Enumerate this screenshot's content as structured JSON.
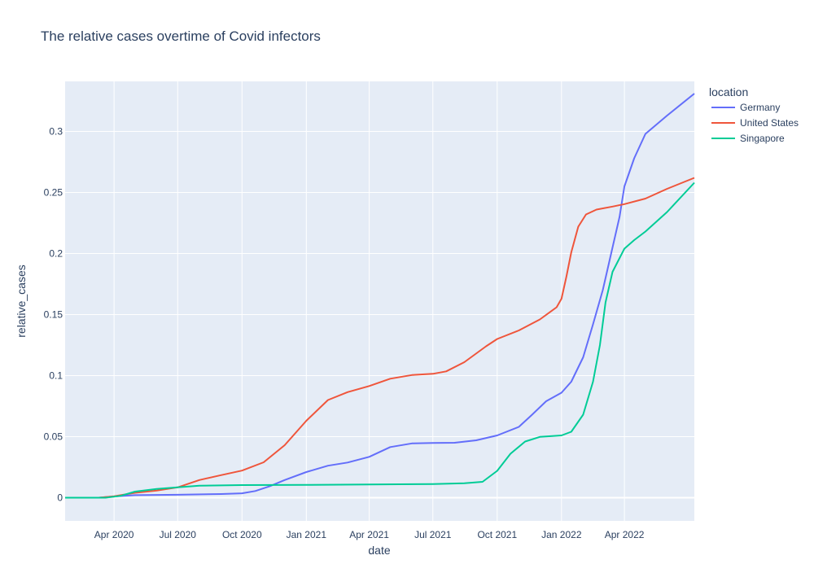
{
  "chart_data": {
    "type": "line",
    "title": "The relative cases overtime of Covid infectors",
    "xlabel": "date",
    "ylabel": "relative_cases",
    "x_range": [
      "2020-01-22",
      "2022-07-10"
    ],
    "ylim": [
      -0.019,
      0.341
    ],
    "y_ticks": [
      0,
      0.05,
      0.1,
      0.15,
      0.2,
      0.25,
      0.3
    ],
    "y_tick_labels": [
      "0",
      "0.05",
      "0.1",
      "0.15",
      "0.2",
      "0.25",
      "0.3"
    ],
    "x_ticks": [
      "2020-04-01",
      "2020-07-01",
      "2020-10-01",
      "2021-01-01",
      "2021-04-01",
      "2021-07-01",
      "2021-10-01",
      "2022-01-01",
      "2022-04-01"
    ],
    "x_tick_labels": [
      "Apr 2020",
      "Jul 2020",
      "Oct 2020",
      "Jan 2021",
      "Apr 2021",
      "Jul 2021",
      "Oct 2021",
      "Jan 2022",
      "Apr 2022"
    ],
    "grid": true,
    "plot_background": "#e5ecf6",
    "legend": {
      "title": "location",
      "placement": "top-right, outside plot"
    },
    "series": [
      {
        "name": "Germany",
        "color": "#636efa",
        "points": [
          [
            "2020-01-22",
            0
          ],
          [
            "2020-03-10",
            0
          ],
          [
            "2020-04-01",
            0.001
          ],
          [
            "2020-05-01",
            0.0021
          ],
          [
            "2020-07-01",
            0.0024
          ],
          [
            "2020-09-01",
            0.003
          ],
          [
            "2020-10-01",
            0.0036
          ],
          [
            "2020-10-20",
            0.0055
          ],
          [
            "2020-11-10",
            0.0095
          ],
          [
            "2020-12-01",
            0.0145
          ],
          [
            "2021-01-01",
            0.021
          ],
          [
            "2021-02-01",
            0.0262
          ],
          [
            "2021-03-01",
            0.0288
          ],
          [
            "2021-04-01",
            0.0335
          ],
          [
            "2021-05-01",
            0.0415
          ],
          [
            "2021-06-01",
            0.0445
          ],
          [
            "2021-07-01",
            0.0448
          ],
          [
            "2021-08-01",
            0.045
          ],
          [
            "2021-09-01",
            0.047
          ],
          [
            "2021-10-01",
            0.051
          ],
          [
            "2021-11-01",
            0.058
          ],
          [
            "2021-11-20",
            0.068
          ],
          [
            "2021-12-10",
            0.079
          ],
          [
            "2022-01-01",
            0.086
          ],
          [
            "2022-01-15",
            0.095
          ],
          [
            "2022-02-01",
            0.115
          ],
          [
            "2022-02-15",
            0.142
          ],
          [
            "2022-03-01",
            0.17
          ],
          [
            "2022-03-15",
            0.205
          ],
          [
            "2022-03-25",
            0.23
          ],
          [
            "2022-04-01",
            0.255
          ],
          [
            "2022-04-15",
            0.278
          ],
          [
            "2022-05-01",
            0.298
          ],
          [
            "2022-06-01",
            0.313
          ],
          [
            "2022-07-10",
            0.331
          ]
        ]
      },
      {
        "name": "United States",
        "color": "#ef553b",
        "points": [
          [
            "2020-01-22",
            0
          ],
          [
            "2020-03-10",
            0
          ],
          [
            "2020-04-01",
            0.0012
          ],
          [
            "2020-05-01",
            0.004
          ],
          [
            "2020-06-01",
            0.0058
          ],
          [
            "2020-07-01",
            0.0085
          ],
          [
            "2020-08-01",
            0.0145
          ],
          [
            "2020-09-01",
            0.0185
          ],
          [
            "2020-10-01",
            0.0222
          ],
          [
            "2020-11-01",
            0.029
          ],
          [
            "2020-12-01",
            0.043
          ],
          [
            "2021-01-01",
            0.063
          ],
          [
            "2021-02-01",
            0.08
          ],
          [
            "2021-03-01",
            0.0865
          ],
          [
            "2021-04-01",
            0.0915
          ],
          [
            "2021-05-01",
            0.0975
          ],
          [
            "2021-06-01",
            0.1005
          ],
          [
            "2021-07-01",
            0.1015
          ],
          [
            "2021-07-20",
            0.1035
          ],
          [
            "2021-08-15",
            0.111
          ],
          [
            "2021-09-15",
            0.124
          ],
          [
            "2021-10-01",
            0.13
          ],
          [
            "2021-11-01",
            0.137
          ],
          [
            "2021-12-01",
            0.146
          ],
          [
            "2021-12-25",
            0.156
          ],
          [
            "2022-01-01",
            0.163
          ],
          [
            "2022-01-08",
            0.181
          ],
          [
            "2022-01-15",
            0.201
          ],
          [
            "2022-01-25",
            0.222
          ],
          [
            "2022-02-05",
            0.232
          ],
          [
            "2022-02-20",
            0.236
          ],
          [
            "2022-03-15",
            0.2385
          ],
          [
            "2022-04-01",
            0.2405
          ],
          [
            "2022-05-01",
            0.245
          ],
          [
            "2022-06-01",
            0.253
          ],
          [
            "2022-07-10",
            0.262
          ]
        ]
      },
      {
        "name": "Singapore",
        "color": "#00cc96",
        "points": [
          [
            "2020-01-22",
            0
          ],
          [
            "2020-03-20",
            0
          ],
          [
            "2020-04-10",
            0.0015
          ],
          [
            "2020-05-01",
            0.005
          ],
          [
            "2020-06-01",
            0.0072
          ],
          [
            "2020-07-01",
            0.0085
          ],
          [
            "2020-08-01",
            0.0098
          ],
          [
            "2020-10-01",
            0.0103
          ],
          [
            "2021-01-01",
            0.0105
          ],
          [
            "2021-04-01",
            0.0108
          ],
          [
            "2021-07-01",
            0.0112
          ],
          [
            "2021-08-15",
            0.0118
          ],
          [
            "2021-09-10",
            0.013
          ],
          [
            "2021-10-01",
            0.022
          ],
          [
            "2021-10-20",
            0.036
          ],
          [
            "2021-11-10",
            0.046
          ],
          [
            "2021-12-01",
            0.0498
          ],
          [
            "2022-01-01",
            0.051
          ],
          [
            "2022-01-15",
            0.054
          ],
          [
            "2022-02-01",
            0.068
          ],
          [
            "2022-02-15",
            0.095
          ],
          [
            "2022-02-25",
            0.125
          ],
          [
            "2022-03-05",
            0.16
          ],
          [
            "2022-03-15",
            0.185
          ],
          [
            "2022-04-01",
            0.204
          ],
          [
            "2022-04-15",
            0.211
          ],
          [
            "2022-05-01",
            0.218
          ],
          [
            "2022-06-01",
            0.234
          ],
          [
            "2022-07-10",
            0.258
          ]
        ]
      }
    ]
  }
}
